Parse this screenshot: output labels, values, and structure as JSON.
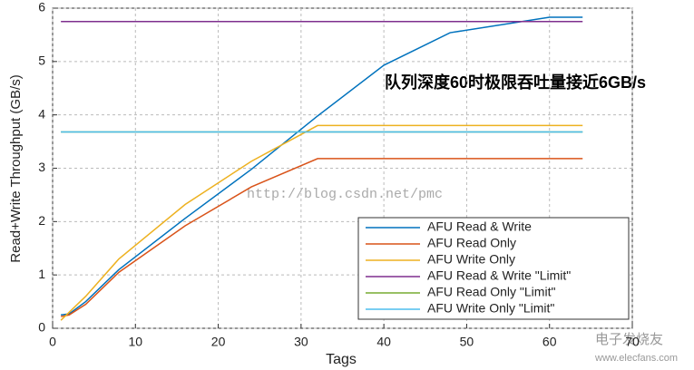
{
  "chart_data": {
    "type": "line",
    "xlabel": "Tags",
    "ylabel": "Read+Write Throughput (GB/s)",
    "annotation": "队列深度60时极限吞吐量接近6GB/s",
    "watermark": "http://blog.csdn.net/pmc",
    "logo_text": "电子发烧友",
    "logo_url": "www.elecfans.com",
    "xlim": [
      0,
      70
    ],
    "xticks": [
      0,
      10,
      20,
      30,
      40,
      50,
      60,
      70
    ],
    "ylim": [
      0,
      6
    ],
    "yticks": [
      0,
      1,
      2,
      3,
      4,
      5,
      6
    ],
    "grid": true,
    "legend": "lower right",
    "series": [
      {
        "name": "AFU Read & Write",
        "color": "#0072bd",
        "x": [
          1,
          2,
          4,
          8,
          16,
          24,
          32,
          40,
          48,
          60,
          64
        ],
        "values": [
          0.25,
          0.27,
          0.5,
          1.1,
          2.06,
          2.98,
          3.98,
          4.93,
          5.54,
          5.83,
          5.83
        ]
      },
      {
        "name": "AFU Read Only",
        "color": "#d95319",
        "x": [
          1,
          2,
          4,
          8,
          16,
          24,
          32,
          64
        ],
        "values": [
          0.22,
          0.25,
          0.45,
          1.05,
          1.92,
          2.65,
          3.18,
          3.18
        ]
      },
      {
        "name": "AFU Write Only",
        "color": "#edb120",
        "x": [
          1,
          2,
          4,
          8,
          16,
          24,
          32,
          64
        ],
        "values": [
          0.15,
          0.3,
          0.6,
          1.3,
          2.32,
          3.13,
          3.8,
          3.8
        ]
      },
      {
        "name": "AFU Read & Write \"Limit\"",
        "color": "#7e2f8e",
        "x": [
          1,
          64
        ],
        "values": [
          5.75,
          5.75
        ]
      },
      {
        "name": "AFU Read Only \"Limit\"",
        "color": "#77ac30",
        "x": [
          1,
          64
        ],
        "values": [
          3.68,
          3.68
        ]
      },
      {
        "name": "AFU Write Only \"Limit\"",
        "color": "#4dbeee",
        "x": [
          1,
          64
        ],
        "values": [
          3.68,
          3.68
        ]
      }
    ]
  }
}
